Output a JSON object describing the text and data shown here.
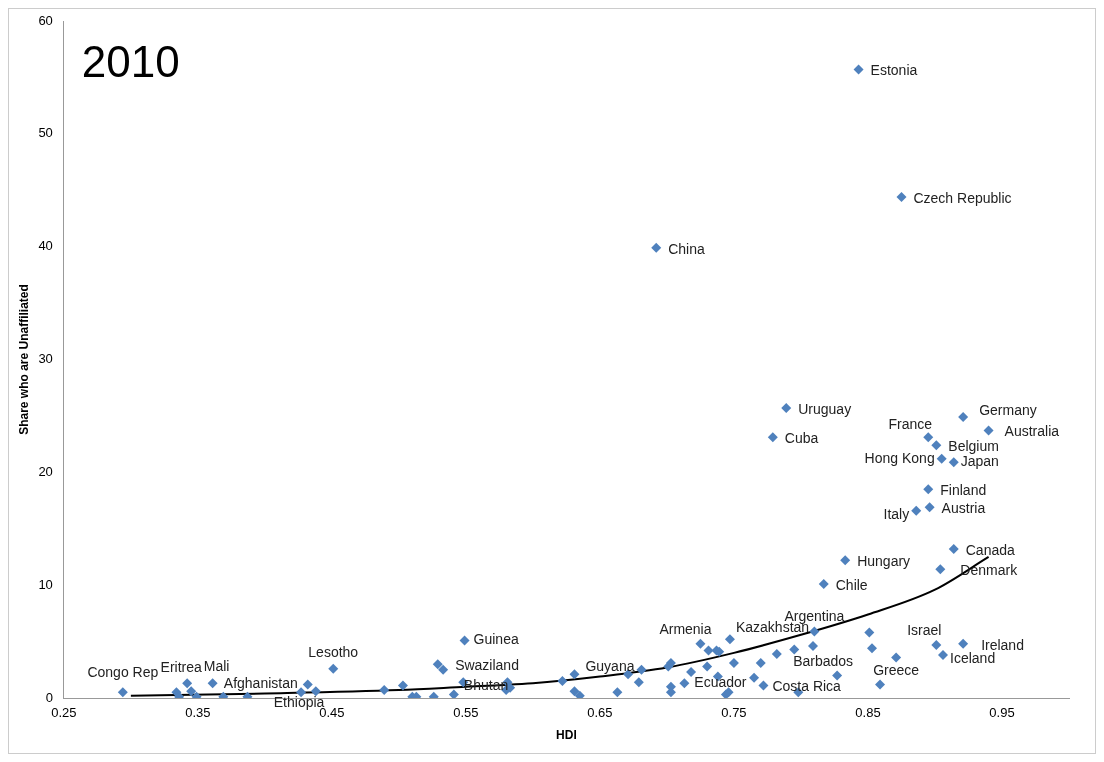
{
  "chart_data": {
    "type": "scatter",
    "title": "2010",
    "xlabel": "HDI",
    "ylabel": "Share who are Unaffiliated",
    "xlim": [
      0.25,
      1.0
    ],
    "xticks": [
      0.25,
      0.35,
      0.45,
      0.55,
      0.65,
      0.75,
      0.85,
      0.95
    ],
    "ylim": [
      0,
      60
    ],
    "yticks": [
      0,
      10,
      20,
      30,
      40,
      50,
      60
    ],
    "marker": "diamond",
    "series": [
      {
        "type": "scatter",
        "color": "#4f81bd",
        "x": [
          0.294,
          0.334,
          0.336,
          0.342,
          0.345,
          0.349,
          0.361,
          0.369,
          0.387,
          0.427,
          0.432,
          0.438,
          0.451,
          0.489,
          0.503,
          0.51,
          0.513,
          0.526,
          0.529,
          0.533,
          0.541,
          0.549,
          0.548,
          0.581,
          0.58,
          0.583,
          0.622,
          0.631,
          0.631,
          0.635,
          0.663,
          0.671,
          0.679,
          0.681,
          0.701,
          0.703,
          0.703,
          0.703,
          0.713,
          0.718,
          0.725,
          0.73,
          0.731,
          0.737,
          0.739,
          0.738,
          0.744,
          0.746,
          0.747,
          0.75,
          0.765,
          0.77,
          0.772,
          0.782,
          0.795,
          0.798,
          0.809,
          0.81,
          0.817,
          0.827,
          0.851,
          0.853,
          0.859,
          0.871,
          0.901,
          0.906,
          0.921,
          0.789,
          0.779,
          0.921,
          0.94,
          0.895,
          0.901,
          0.905,
          0.914,
          0.895,
          0.896,
          0.886,
          0.914,
          0.904,
          0.833,
          0.843,
          0.875,
          0.692
        ],
        "values": [
          0.5,
          0.5,
          0.1,
          1.3,
          0.6,
          0.1,
          1.3,
          0.1,
          0.1,
          0.5,
          1.2,
          0.6,
          2.6,
          0.7,
          1.1,
          0.1,
          0.1,
          0.1,
          3.0,
          2.5,
          0.3,
          5.1,
          1.4,
          1.4,
          0.7,
          0.9,
          1.5,
          2.1,
          0.6,
          0.2,
          0.5,
          2.1,
          1.4,
          2.5,
          2.8,
          3.1,
          1.0,
          0.5,
          1.3,
          2.3,
          4.8,
          2.8,
          4.2,
          4.2,
          4.1,
          1.9,
          0.3,
          0.5,
          5.2,
          3.1,
          1.8,
          3.1,
          1.1,
          3.9,
          4.3,
          0.5,
          4.6,
          5.9,
          10.1,
          2.0,
          5.8,
          4.4,
          1.2,
          3.6,
          4.7,
          3.8,
          4.8,
          25.7,
          23.1,
          24.9,
          23.7,
          23.1,
          22.4,
          21.2,
          20.9,
          18.5,
          16.9,
          16.6,
          13.2,
          11.4,
          12.2,
          55.7,
          44.4,
          39.9
        ]
      },
      {
        "type": "line",
        "color": "#000000",
        "marker": "none",
        "x": [
          0.3,
          0.4,
          0.5,
          0.55,
          0.6,
          0.65,
          0.7,
          0.75,
          0.8,
          0.85,
          0.9,
          0.94
        ],
        "values": [
          0.2,
          0.4,
          0.7,
          1.0,
          1.3,
          1.9,
          2.7,
          4.0,
          5.6,
          7.4,
          9.6,
          12.5
        ]
      }
    ],
    "annotations": [
      {
        "text": "Congo Rep",
        "x": 0.294,
        "y": 0.45
      },
      {
        "text": "Eritrea",
        "x": 0.342,
        "y": 1.3
      },
      {
        "text": "Mali",
        "x": 0.361,
        "y": 1.3
      },
      {
        "text": "Afghanistan",
        "x": 0.432,
        "y": 1.2
      },
      {
        "text": "Ethiopia",
        "x": 0.427,
        "y": 0.48
      },
      {
        "text": "Lesotho",
        "x": 0.451,
        "y": 2.6
      },
      {
        "text": "Guinea",
        "x": 0.549,
        "y": 5.1
      },
      {
        "text": "Swaziland",
        "x": 0.533,
        "y": 2.5
      },
      {
        "text": "Bhutan",
        "x": 0.541,
        "y": 0.33
      },
      {
        "text": "Guyana",
        "x": 0.681,
        "y": 2.45
      },
      {
        "text": "Armenia",
        "x": 0.725,
        "y": 4.84
      },
      {
        "text": "Kazakhstan",
        "x": 0.747,
        "y": 5.2
      },
      {
        "text": "Ecuador",
        "x": 0.713,
        "y": 1.3
      },
      {
        "text": "Argentina",
        "x": 0.81,
        "y": 5.9
      },
      {
        "text": "Costa Rica",
        "x": 0.772,
        "y": 1.06
      },
      {
        "text": "Chile",
        "x": 0.817,
        "y": 10.1
      },
      {
        "text": "Barbados",
        "x": 0.827,
        "y": 1.97
      },
      {
        "text": "Hungary",
        "x": 0.833,
        "y": 12.2
      },
      {
        "text": "Israel",
        "x": 0.901,
        "y": 4.7
      },
      {
        "text": "Ireland",
        "x": 0.921,
        "y": 4.8
      },
      {
        "text": "Greece",
        "x": 0.871,
        "y": 3.6
      },
      {
        "text": "Iceland",
        "x": 0.906,
        "y": 3.8
      },
      {
        "text": "Canada",
        "x": 0.914,
        "y": 13.2
      },
      {
        "text": "Denmark",
        "x": 0.904,
        "y": 11.4
      },
      {
        "text": "Italy",
        "x": 0.886,
        "y": 16.6
      },
      {
        "text": "Austria",
        "x": 0.896,
        "y": 16.9
      },
      {
        "text": "Finland",
        "x": 0.895,
        "y": 18.5
      },
      {
        "text": "Hong Kong",
        "x": 0.905,
        "y": 21.2
      },
      {
        "text": "Japan",
        "x": 0.914,
        "y": 20.9
      },
      {
        "text": "Belgium",
        "x": 0.901,
        "y": 22.4
      },
      {
        "text": "France",
        "x": 0.895,
        "y": 23.1
      },
      {
        "text": "Australia",
        "x": 0.94,
        "y": 23.7
      },
      {
        "text": "Germany",
        "x": 0.921,
        "y": 24.9
      },
      {
        "text": "Cuba",
        "x": 0.779,
        "y": 23.1
      },
      {
        "text": "Uruguay",
        "x": 0.789,
        "y": 25.7
      },
      {
        "text": "China",
        "x": 0.692,
        "y": 39.9
      },
      {
        "text": "Czech Republic",
        "x": 0.875,
        "y": 44.4
      },
      {
        "text": "Estonia",
        "x": 0.843,
        "y": 55.7
      }
    ]
  }
}
